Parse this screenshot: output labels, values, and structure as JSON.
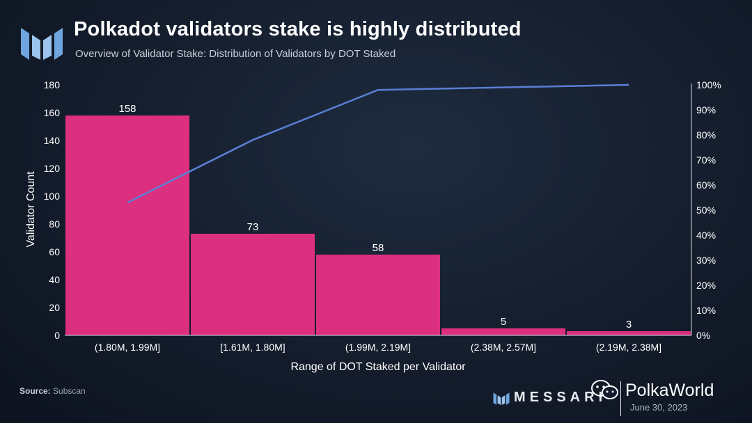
{
  "header": {
    "title": "Polkadot validators stake is highly distributed",
    "subtitle": "Overview of Validator Stake: Distribution  of Validators by DOT Staked"
  },
  "footer": {
    "source_label": "Source:",
    "source_value": "Subscan",
    "brand": "MESSARI",
    "date": "June 30, 2023",
    "watermark": "PolkaWorld"
  },
  "colors": {
    "bar": "#dc2f7f",
    "line": "#5b7fd6",
    "background": "#141d2c",
    "axis_text": "#ffffff"
  },
  "chart_data": {
    "type": "bar",
    "categories": [
      "(1.80M, 1.99M]",
      "[1.61M, 1.80M]",
      "(1.99M, 2.19M]",
      "(2.38M, 2.57M]",
      "(2.19M, 2.38M]"
    ],
    "series": [
      {
        "type": "bar",
        "values": [
          158,
          73,
          58,
          5,
          3
        ]
      },
      {
        "type": "line",
        "axis": "right",
        "values": [
          0.53,
          0.78,
          0.98,
          0.99,
          1.0
        ]
      }
    ],
    "data_labels": [
      "158",
      "73",
      "58",
      "5",
      "3"
    ],
    "xlabel": "Range of DOT Staked per Validator",
    "ylabel": "Validator Count",
    "ylim": [
      0,
      180
    ],
    "y_ticks": [
      0,
      20,
      40,
      60,
      80,
      100,
      120,
      140,
      160,
      180
    ],
    "y2lim": [
      0,
      1
    ],
    "y2_ticks": [
      "0%",
      "10%",
      "20%",
      "30%",
      "40%",
      "50%",
      "60%",
      "70%",
      "80%",
      "90%",
      "100%"
    ],
    "grid": false
  }
}
